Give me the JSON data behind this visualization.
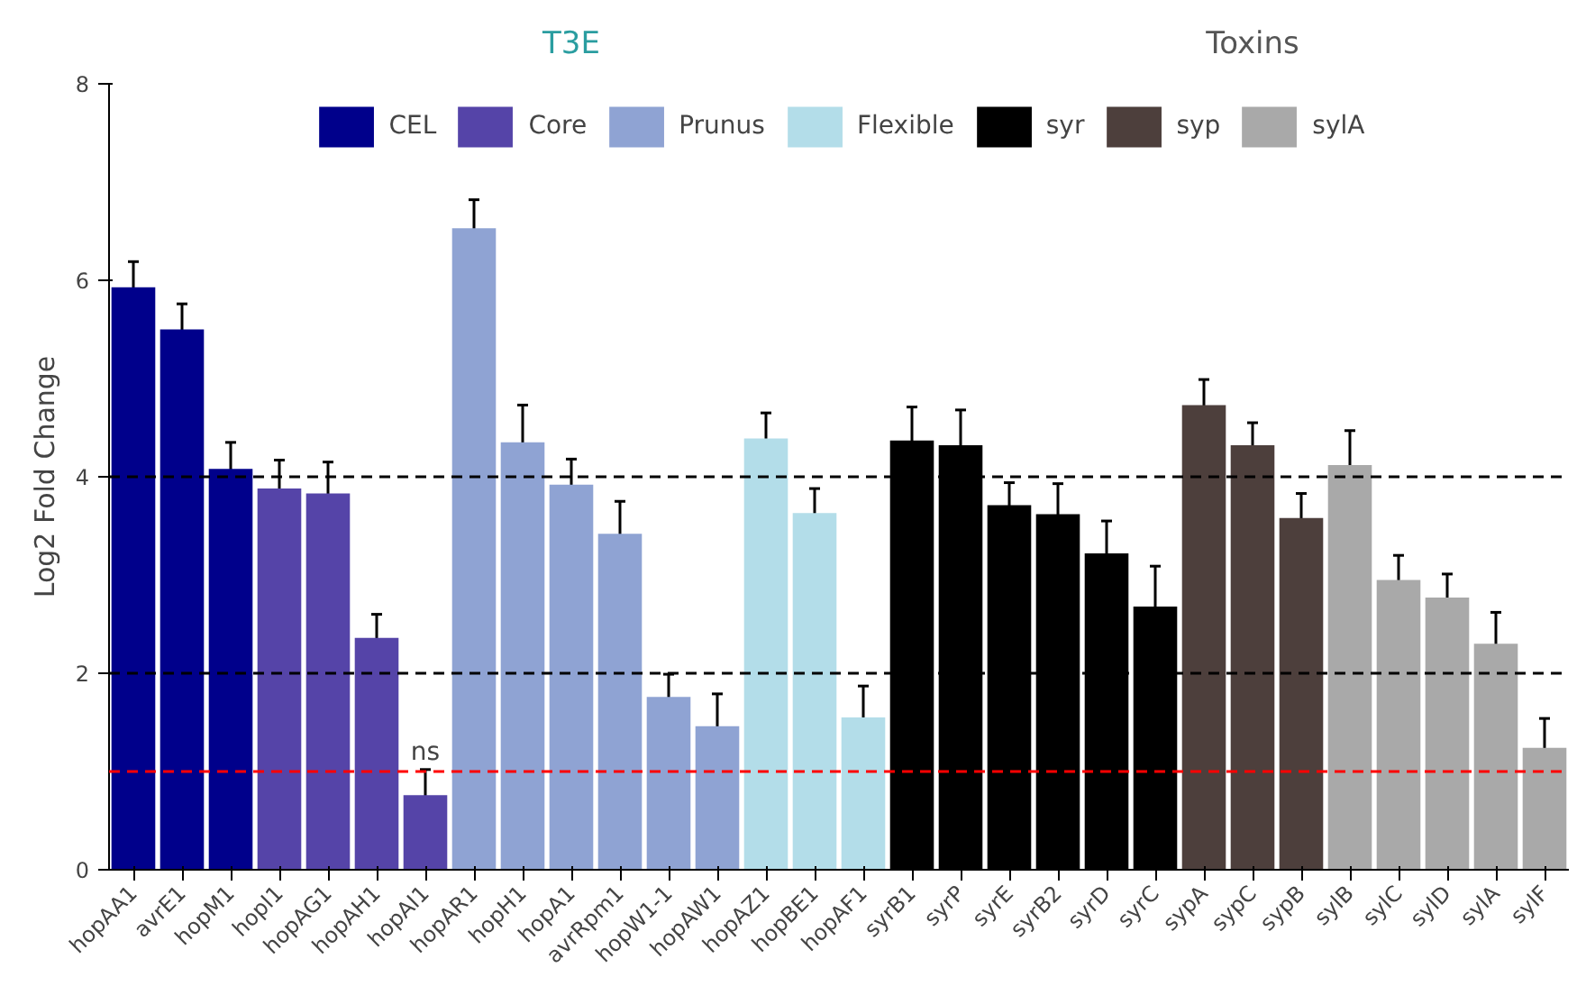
{
  "chart_data": {
    "type": "bar",
    "ylabel": "Log2 Fold Change",
    "categories": [
      "hopAA1",
      "avrE1",
      "hopM1",
      "hopI1",
      "hopAG1",
      "hopAH1",
      "hopAI1",
      "hopAR1",
      "hopH1",
      "hopA1",
      "avrRpm1",
      "hopW1-1",
      "hopAW1",
      "hopAZ1",
      "hopBE1",
      "hopAF1",
      "syrB1",
      "syrP",
      "syrE",
      "syrB2",
      "syrD",
      "syrC",
      "sypA",
      "sypC",
      "sypB",
      "sylB",
      "sylC",
      "sylD",
      "sylA",
      "sylF"
    ],
    "series": [
      {
        "name": "CEL",
        "color": "#00008b",
        "values": [
          5.93,
          5.5,
          4.08,
          null,
          null,
          null,
          null,
          null,
          null,
          null,
          null,
          null,
          null,
          null,
          null,
          null,
          null,
          null,
          null,
          null,
          null,
          null,
          null,
          null,
          null,
          null,
          null,
          null,
          null,
          null
        ],
        "errors": [
          0.26,
          0.26,
          0.27,
          null,
          null,
          null,
          null,
          null,
          null,
          null,
          null,
          null,
          null,
          null,
          null,
          null,
          null,
          null,
          null,
          null,
          null,
          null,
          null,
          null,
          null,
          null,
          null,
          null,
          null,
          null
        ]
      },
      {
        "name": "Core",
        "color": "#5544a8",
        "values": [
          null,
          null,
          null,
          3.88,
          3.83,
          2.36,
          0.76,
          null,
          null,
          null,
          null,
          null,
          null,
          null,
          null,
          null,
          null,
          null,
          null,
          null,
          null,
          null,
          null,
          null,
          null,
          null,
          null,
          null,
          null,
          null
        ],
        "errors": [
          null,
          null,
          null,
          0.29,
          0.32,
          0.24,
          0.26,
          null,
          null,
          null,
          null,
          null,
          null,
          null,
          null,
          null,
          null,
          null,
          null,
          null,
          null,
          null,
          null,
          null,
          null,
          null,
          null,
          null,
          null,
          null
        ]
      },
      {
        "name": "Prunus",
        "color": "#8fa3d3",
        "values": [
          null,
          null,
          null,
          null,
          null,
          null,
          null,
          6.53,
          4.35,
          3.92,
          3.42,
          1.76,
          1.46,
          null,
          null,
          null,
          null,
          null,
          null,
          null,
          null,
          null,
          null,
          null,
          null,
          null,
          null,
          null,
          null,
          null
        ],
        "errors": [
          null,
          null,
          null,
          null,
          null,
          null,
          null,
          0.29,
          0.38,
          0.26,
          0.33,
          0.23,
          0.33,
          null,
          null,
          null,
          null,
          null,
          null,
          null,
          null,
          null,
          null,
          null,
          null,
          null,
          null,
          null,
          null,
          null
        ]
      },
      {
        "name": "Flexible",
        "color": "#b3dde9",
        "values": [
          null,
          null,
          null,
          null,
          null,
          null,
          null,
          null,
          null,
          null,
          null,
          null,
          null,
          4.39,
          3.63,
          1.55,
          null,
          null,
          null,
          null,
          null,
          null,
          null,
          null,
          null,
          null,
          null,
          null,
          null,
          null
        ],
        "errors": [
          null,
          null,
          null,
          null,
          null,
          null,
          null,
          null,
          null,
          null,
          null,
          null,
          null,
          0.26,
          0.25,
          0.32,
          null,
          null,
          null,
          null,
          null,
          null,
          null,
          null,
          null,
          null,
          null,
          null,
          null,
          null
        ]
      },
      {
        "name": "syr",
        "color": "#000000",
        "values": [
          null,
          null,
          null,
          null,
          null,
          null,
          null,
          null,
          null,
          null,
          null,
          null,
          null,
          null,
          null,
          null,
          4.37,
          4.32,
          3.71,
          3.62,
          3.22,
          2.68,
          null,
          null,
          null,
          null,
          null,
          null,
          null,
          null
        ],
        "errors": [
          null,
          null,
          null,
          null,
          null,
          null,
          null,
          null,
          null,
          null,
          null,
          null,
          null,
          null,
          null,
          null,
          0.34,
          0.36,
          0.23,
          0.31,
          0.33,
          0.41,
          null,
          null,
          null,
          null,
          null,
          null,
          null,
          null
        ]
      },
      {
        "name": "syp",
        "color": "#4d3f3c",
        "values": [
          null,
          null,
          null,
          null,
          null,
          null,
          null,
          null,
          null,
          null,
          null,
          null,
          null,
          null,
          null,
          null,
          null,
          null,
          null,
          null,
          null,
          null,
          4.73,
          4.32,
          3.58,
          null,
          null,
          null,
          null,
          null
        ],
        "errors": [
          null,
          null,
          null,
          null,
          null,
          null,
          null,
          null,
          null,
          null,
          null,
          null,
          null,
          null,
          null,
          null,
          null,
          null,
          null,
          null,
          null,
          null,
          0.26,
          0.23,
          0.25,
          null,
          null,
          null,
          null,
          null
        ]
      },
      {
        "name": "sylA",
        "color": "#a9a9a9",
        "values": [
          null,
          null,
          null,
          null,
          null,
          null,
          null,
          null,
          null,
          null,
          null,
          null,
          null,
          null,
          null,
          null,
          null,
          null,
          null,
          null,
          null,
          null,
          null,
          null,
          null,
          4.12,
          2.95,
          2.77,
          2.3,
          1.24
        ],
        "errors": [
          null,
          null,
          null,
          null,
          null,
          null,
          null,
          null,
          null,
          null,
          null,
          null,
          null,
          null,
          null,
          null,
          null,
          null,
          null,
          null,
          null,
          null,
          null,
          null,
          null,
          0.35,
          0.25,
          0.24,
          0.32,
          0.3
        ]
      }
    ],
    "ylim": [
      0,
      8
    ],
    "yticks": [
      0,
      2,
      4,
      6,
      8
    ],
    "grid": false,
    "legend": "top",
    "ref_lines": [
      {
        "axis": "y",
        "value": 2,
        "color": "#000000",
        "line_style": "dashed"
      },
      {
        "axis": "y",
        "value": 4,
        "color": "#000000",
        "line_style": "dashed"
      },
      {
        "axis": "y",
        "value": 1,
        "color": "#ff0000",
        "line_style": "dashed"
      }
    ],
    "annotations": [
      {
        "text": "ns",
        "x": "hopAI1",
        "y": 1.05
      },
      "T3E",
      "Toxins"
    ]
  }
}
